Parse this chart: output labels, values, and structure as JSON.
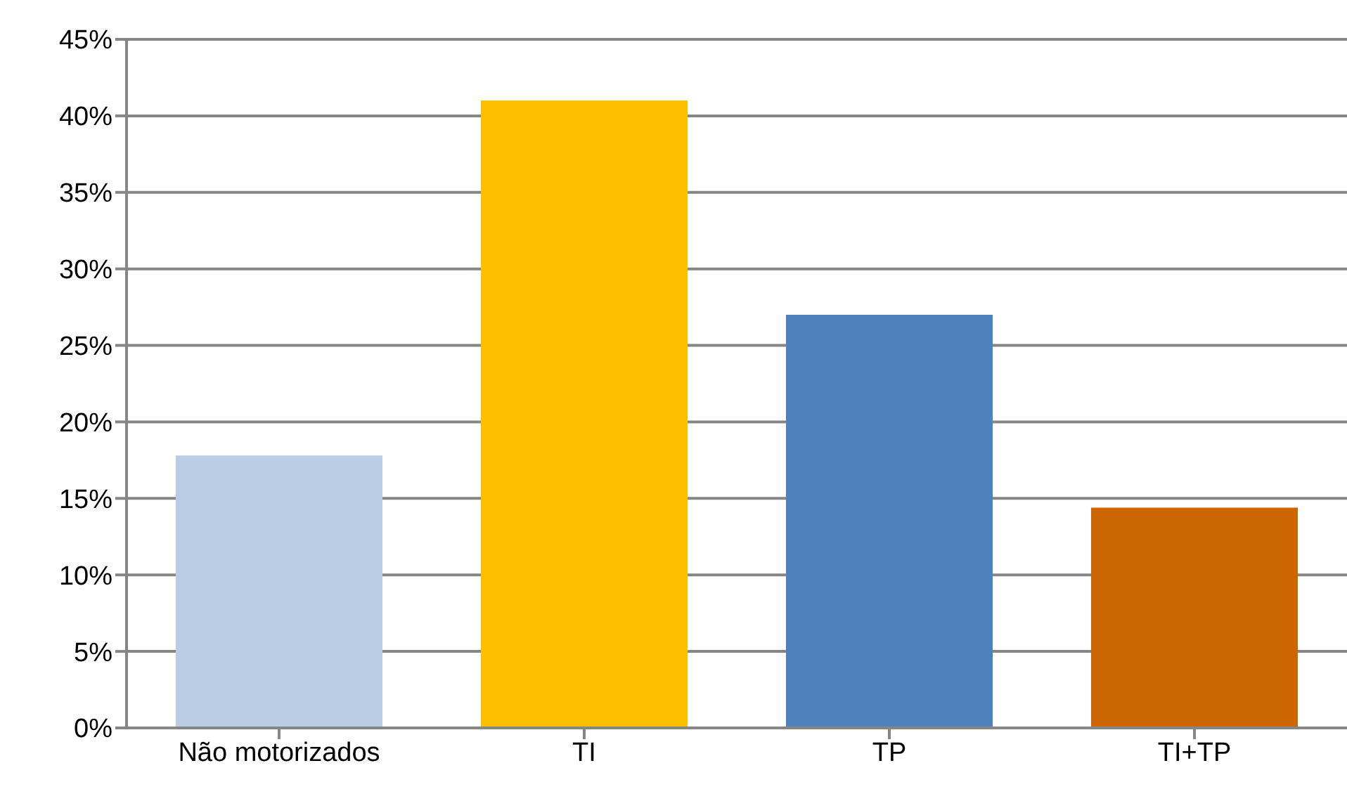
{
  "chart_data": {
    "type": "bar",
    "categories": [
      "Não motorizados",
      "TI",
      "TP",
      "TI+TP"
    ],
    "values": [
      17.8,
      41,
      27,
      14.4
    ],
    "colors": [
      "#b9cde5",
      "#fdc000",
      "#4f81bd",
      "#cc6600"
    ],
    "ylim": [
      0,
      45
    ],
    "yticks": [
      {
        "value": 0,
        "label": "0%"
      },
      {
        "value": 5,
        "label": "5%"
      },
      {
        "value": 10,
        "label": "10%"
      },
      {
        "value": 15,
        "label": "15%"
      },
      {
        "value": 20,
        "label": "20%"
      },
      {
        "value": 25,
        "label": "25%"
      },
      {
        "value": 30,
        "label": "30%"
      },
      {
        "value": 35,
        "label": "35%"
      },
      {
        "value": 40,
        "label": "40%"
      },
      {
        "value": 45,
        "label": "45%"
      }
    ],
    "grid": "y",
    "legend": false
  }
}
